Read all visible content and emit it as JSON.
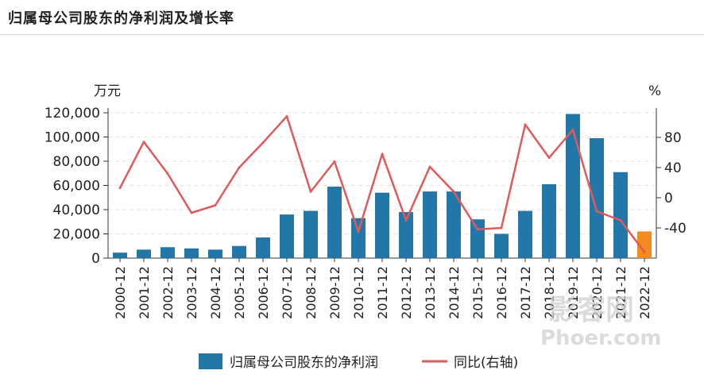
{
  "title": "归属母公司股东的净利润及增长率",
  "watermark": {
    "line1": "影客网",
    "line2": "Phoer.com"
  },
  "colors": {
    "bar": "#2277a8",
    "bar_last": "#f48b1f",
    "line": "#e05a5a",
    "grid": "#e2e2e2",
    "axis": "#333333"
  },
  "chart_data": {
    "type": "bar",
    "categories": [
      "2000-12",
      "2001-12",
      "2002-12",
      "2003-12",
      "2004-12",
      "2005-12",
      "2006-12",
      "2007-12",
      "2008-12",
      "2009-12",
      "2010-12",
      "2011-12",
      "2012-12",
      "2013-12",
      "2014-12",
      "2015-12",
      "2016-12",
      "2017-12",
      "2018-12",
      "2019-12",
      "2020-12",
      "2021-12",
      "2022-12"
    ],
    "series": [
      {
        "name": "归属母公司股东的净利润",
        "type": "bar",
        "axis": "left",
        "values": [
          4500,
          7000,
          9000,
          8000,
          7000,
          10000,
          17000,
          36000,
          39000,
          59000,
          33000,
          54000,
          38000,
          55000,
          55000,
          32000,
          20000,
          39000,
          61000,
          119000,
          99000,
          71000,
          22000
        ]
      },
      {
        "name": "同比(右轴)",
        "type": "line",
        "axis": "right",
        "values": [
          13,
          74,
          32,
          -20,
          -10,
          40,
          73,
          108,
          8,
          48,
          -45,
          58,
          -30,
          41,
          8,
          -42,
          -40,
          97,
          53,
          90,
          -18,
          -30,
          -72
        ]
      }
    ],
    "y_left": {
      "unit": "万元",
      "min": 0,
      "max": 120000,
      "ticks": [
        0,
        20000,
        40000,
        60000,
        80000,
        100000,
        120000
      ],
      "tick_labels": [
        "0",
        "20,000",
        "40,000",
        "60,000",
        "80,000",
        "100,000",
        "120,000"
      ]
    },
    "y_right": {
      "unit": "%",
      "ticks": [
        -40,
        0,
        40,
        80
      ],
      "tick_labels": [
        "-40",
        "0",
        "40",
        "80"
      ]
    },
    "highlight_last_bar": true,
    "grid": true,
    "legend_position": "bottom-center"
  }
}
